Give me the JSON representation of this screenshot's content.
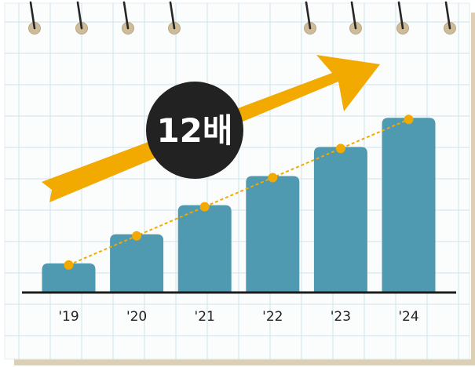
{
  "chart_data": {
    "type": "bar",
    "categories": [
      "'19",
      "'20",
      "'21",
      "'22",
      "'23",
      "'24"
    ],
    "values": [
      1.0,
      2.0,
      3.0,
      4.0,
      5.0,
      6.0
    ],
    "ylim": [
      0,
      6.6
    ],
    "grid": true,
    "trend_line": true,
    "annotation": "12배",
    "colors": {
      "bar": "#4F99B1",
      "trend": "#F2A900",
      "arrow": "#F2A900",
      "badge": "#222222",
      "grid": "#cfe3ec",
      "axis": "#1d1d1d",
      "paper_shadow": "#dccfb6"
    }
  }
}
